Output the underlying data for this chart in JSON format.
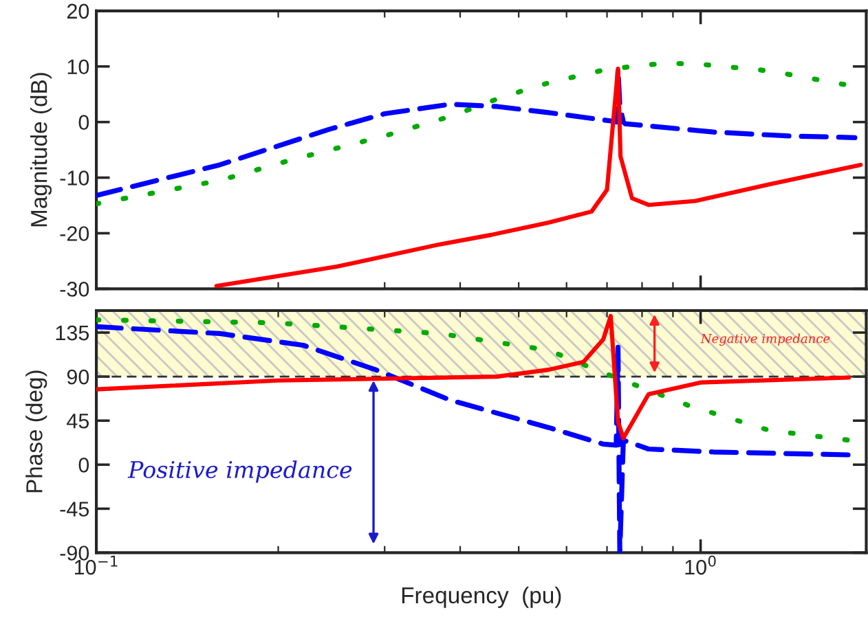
{
  "chart_data": [
    {
      "type": "line",
      "ylabel": "Magnitude (dB)",
      "log": "x",
      "xlim": [
        0.1,
        1.88
      ],
      "ylim": [
        -30,
        20
      ],
      "yticks": [
        -30,
        -20,
        -10,
        0,
        10,
        20
      ],
      "xticks": [
        0.1,
        1
      ],
      "tick_labels": "y",
      "grid": false,
      "legend": false,
      "series": [
        {
          "color": "#00aa00",
          "line_style": "dotted",
          "x": [
            0.1,
            0.16,
            0.212,
            0.3,
            0.39,
            0.47,
            0.562,
            0.7,
            0.873,
            1.0,
            1.3,
            1.76
          ],
          "values": [
            -14.7,
            -10.5,
            -6.7,
            -2.5,
            1.2,
            4.5,
            7.1,
            9.5,
            10.6,
            10.4,
            9.2,
            6.6
          ]
        },
        {
          "color": "#0000ff",
          "line_style": "dashed",
          "x": [
            0.1,
            0.16,
            0.243,
            0.3,
            0.385,
            0.46,
            0.56,
            0.71,
            0.725,
            0.73,
            0.735,
            0.745,
            0.75,
            1.05,
            1.4,
            1.8
          ],
          "values": [
            -13.2,
            -7.7,
            -1.3,
            1.5,
            3.2,
            2.8,
            1.7,
            0.2,
            0.0,
            9.6,
            3.0,
            0.0,
            -0.3,
            -1.8,
            -2.5,
            -2.8
          ]
        },
        {
          "color": "#ff0000",
          "line_style": "solid",
          "x": [
            0.158,
            0.25,
            0.37,
            0.45,
            0.56,
            0.66,
            0.7,
            0.71,
            0.73,
            0.737,
            0.77,
            0.82,
            0.98,
            1.3,
            1.84
          ],
          "values": [
            -29.5,
            -26,
            -22,
            -20.3,
            -18.1,
            -16.1,
            -12.2,
            -4.8,
            9.6,
            -6.2,
            -13.7,
            -14.9,
            -14.2,
            -11.2,
            -7.7
          ]
        }
      ]
    },
    {
      "type": "line",
      "ylabel": "Phase (deg)",
      "xlabel": "Frequency  (pu)",
      "log": "x",
      "xlim": [
        0.1,
        1.88
      ],
      "ylim": [
        -90,
        157.5
      ],
      "yticks": [
        -90,
        -45,
        0,
        45,
        90,
        135
      ],
      "xticks": [
        {
          "value": 0.1,
          "label": "10$^{−1}$"
        },
        {
          "value": 1,
          "label": "10$^{0}$"
        }
      ],
      "grid": false,
      "legend": false,
      "bands": [
        {
          "axis": "y",
          "from": 90,
          "to": 157.5,
          "color": "#fdfbd0"
        }
      ],
      "ref_lines": [
        {
          "axis": "y",
          "value": 90,
          "color": "#333333",
          "line_style": "dashed"
        }
      ],
      "annotations": [
        "Positive impedance",
        "Negative impedance"
      ],
      "series": [
        {
          "color": "#00aa00",
          "line_style": "dotted",
          "x": [
            0.1,
            0.197,
            0.37,
            0.56,
            0.69,
            0.95,
            1.3,
            1.76
          ],
          "values": [
            148,
            145,
            134,
            117,
            94,
            61,
            35,
            25
          ]
        },
        {
          "color": "#0000ff",
          "line_style": "dashed",
          "x": [
            0.1,
            0.16,
            0.22,
            0.29,
            0.385,
            0.56,
            0.69,
            0.725,
            0.73,
            0.735,
            0.745,
            0.82,
            1.05,
            1.76
          ],
          "values": [
            141,
            134,
            122,
            97,
            66,
            38,
            21,
            20,
            120,
            -90,
            25,
            16,
            13,
            10
          ]
        },
        {
          "color": "#ff0000",
          "line_style": "solid",
          "x": [
            0.1,
            0.2,
            0.46,
            0.56,
            0.64,
            0.69,
            0.71,
            0.73,
            0.745,
            0.82,
            1.0,
            1.76
          ],
          "values": [
            77,
            86,
            90,
            97,
            105,
            128,
            152,
            44,
            27,
            72,
            84,
            89
          ]
        }
      ]
    }
  ]
}
